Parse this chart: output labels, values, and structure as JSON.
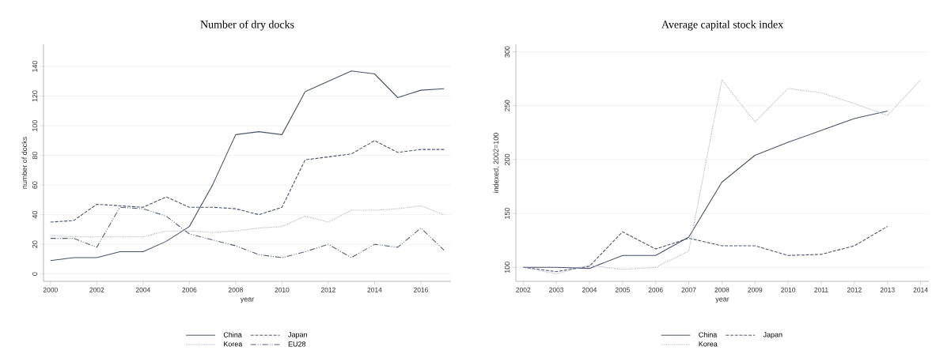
{
  "chart_data": [
    {
      "type": "line",
      "title": "Number of dry docks",
      "xlabel": "year",
      "ylabel": "number of docks",
      "x": [
        2000,
        2001,
        2002,
        2003,
        2004,
        2005,
        2006,
        2007,
        2008,
        2009,
        2010,
        2011,
        2012,
        2013,
        2014,
        2015,
        2016,
        2017
      ],
      "series": [
        {
          "name": "China",
          "color": "#4a5270",
          "line_style": "solid",
          "values": [
            9,
            11,
            11,
            15,
            15,
            22,
            32,
            60,
            94,
            96,
            94,
            123,
            130,
            137,
            135,
            119,
            124,
            125
          ]
        },
        {
          "name": "Japan",
          "color": "#4a5270",
          "line_style": "dashed",
          "values": [
            35,
            36,
            47,
            46,
            45,
            52,
            45,
            45,
            44,
            40,
            45,
            77,
            79,
            81,
            90,
            82,
            84,
            84
          ]
        },
        {
          "name": "Korea",
          "color": "#b4b8c6",
          "line_style": "dotted",
          "values": [
            26,
            25,
            25,
            25,
            25,
            29,
            29,
            28,
            29,
            31,
            32,
            39,
            35,
            43,
            43,
            44,
            46,
            40
          ]
        },
        {
          "name": "EU28",
          "color": "#56607e",
          "line_style": "dashdot",
          "values": [
            24,
            24,
            18,
            45,
            44,
            39,
            27,
            23,
            19,
            13,
            11,
            15,
            20,
            11,
            20,
            18,
            31,
            16
          ]
        }
      ],
      "xlim": [
        1999.7,
        2017.3
      ],
      "xticks": [
        2000,
        2002,
        2004,
        2006,
        2008,
        2010,
        2012,
        2014,
        2016
      ],
      "ylim": [
        -5,
        155
      ],
      "yticks": [
        0,
        20,
        40,
        60,
        80,
        100,
        120,
        140
      ],
      "grid": "y",
      "legend": "bottom"
    },
    {
      "type": "line",
      "title": "Average capital stock index",
      "xlabel": "year",
      "ylabel": "indexed, 2002=100",
      "x": [
        2002,
        2003,
        2004,
        2005,
        2006,
        2007,
        2008,
        2009,
        2010,
        2011,
        2012,
        2013,
        2014
      ],
      "series": [
        {
          "name": "China",
          "color": "#4a5270",
          "line_style": "solid",
          "values": [
            100,
            100,
            99,
            111,
            111,
            128,
            179,
            204,
            216,
            227,
            238,
            245,
            null
          ]
        },
        {
          "name": "Japan",
          "color": "#4a5270",
          "line_style": "dashed",
          "values": [
            100,
            96,
            101,
            133,
            117,
            127,
            120,
            120,
            111,
            112,
            120,
            138,
            null
          ]
        },
        {
          "name": "Korea",
          "color": "#b4b8c6",
          "line_style": "dotted",
          "values": [
            100,
            94,
            102,
            98,
            100,
            115,
            274,
            235,
            266,
            262,
            252,
            241,
            274
          ]
        }
      ],
      "xlim": [
        2001.78,
        2014.25
      ],
      "xticks": [
        2002,
        2003,
        2004,
        2005,
        2006,
        2007,
        2008,
        2009,
        2010,
        2011,
        2012,
        2013,
        2014
      ],
      "ylim": [
        87,
        307
      ],
      "yticks": [
        100,
        150,
        200,
        250,
        300
      ],
      "grid": "y",
      "legend": "bottom"
    }
  ]
}
